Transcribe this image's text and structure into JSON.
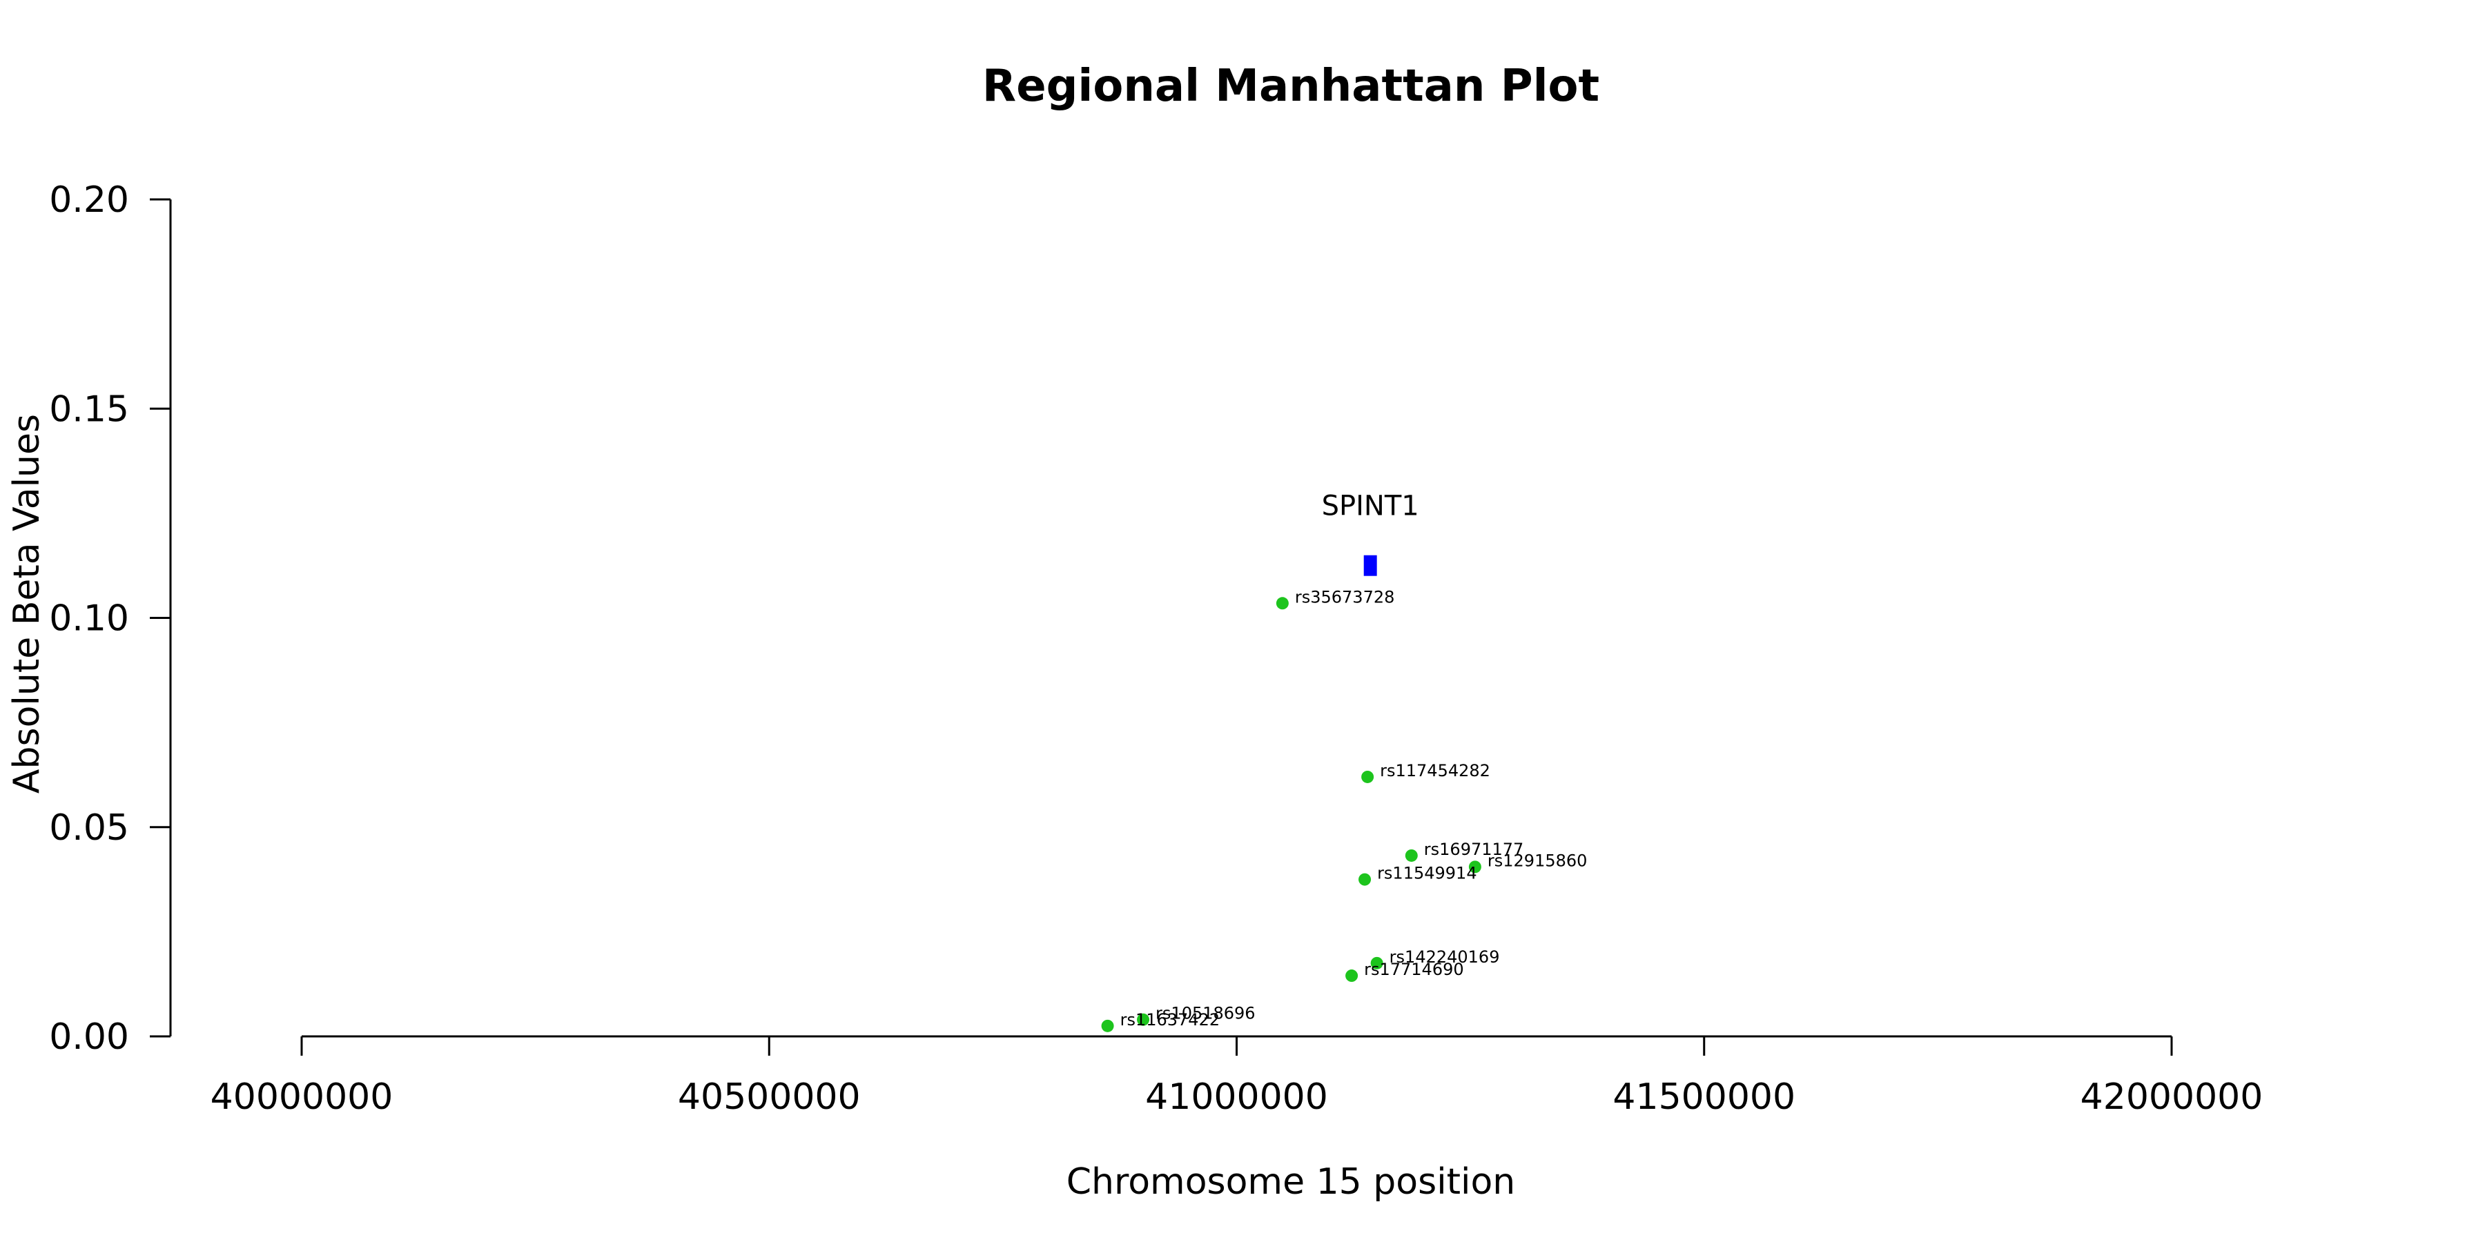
{
  "chart_data": {
    "type": "scatter",
    "title": "Regional Manhattan Plot",
    "xlabel": "Chromosome 15 position",
    "ylabel": "Absolute Beta Values",
    "xlim": [
      40000000,
      42000000
    ],
    "ylim": [
      0,
      0.2
    ],
    "x_ticks": [
      40000000,
      40500000,
      41000000,
      41500000,
      42000000
    ],
    "x_tick_labels": [
      "40000000",
      "40500000",
      "41000000",
      "41500000",
      "42000000"
    ],
    "y_ticks": [
      0,
      0.05,
      0.1,
      0.15,
      0.2
    ],
    "y_tick_labels": [
      "0.00",
      "0.05",
      "0.10",
      "0.15",
      "0.20"
    ],
    "grid": false,
    "point_color": "#1dc41d",
    "gene_color": "#0000ff",
    "genes": [
      {
        "name": "SPINT1",
        "start": 41136000,
        "end": 41150000,
        "y": 0.1125
      }
    ],
    "series": [
      {
        "points": [
          {
            "id": "rs35673728",
            "x": 41049000,
            "y": 0.1035
          },
          {
            "id": "rs117454282",
            "x": 41140000,
            "y": 0.062
          },
          {
            "id": "rs16971177",
            "x": 41187000,
            "y": 0.0432
          },
          {
            "id": "rs12915860",
            "x": 41255000,
            "y": 0.0405
          },
          {
            "id": "rs11549914",
            "x": 41137000,
            "y": 0.0375
          },
          {
            "id": "rs142240169",
            "x": 41150000,
            "y": 0.0175
          },
          {
            "id": "rs17714690",
            "x": 41123000,
            "y": 0.0145
          },
          {
            "id": "rs10518696",
            "x": 40900000,
            "y": 0.004
          },
          {
            "id": "rs11637422",
            "x": 40862000,
            "y": 0.0025
          }
        ]
      }
    ]
  }
}
